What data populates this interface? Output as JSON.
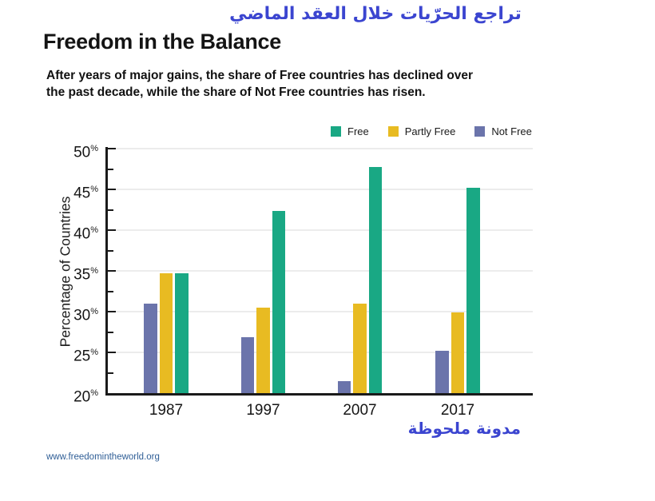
{
  "page": {
    "arabic_header": "تراجع الحرّيات خلال العقد الماضي",
    "title": "Freedom in the Balance",
    "subtitle_line1": "After years of major gains, the share of Free countries has declined over",
    "subtitle_line2": "the past decade, while the share of Not Free countries has risen.",
    "arabic_note": "مدونة ملحوظة",
    "website": "www.freedomintheworld.org"
  },
  "colors": {
    "free_green": "#19a884",
    "partly_free_yellow": "#e8bb22",
    "not_free_purple": "#6b74ab",
    "arabic_blue": "#3b45d0",
    "link_blue": "#2f5e96",
    "grid": "#ececec",
    "axis": "#1a1a1a"
  },
  "chart_data": {
    "type": "bar",
    "title": "Freedom in the Balance",
    "xlabel": "",
    "ylabel": "Percentage of Countries",
    "ylim": [
      20,
      50
    ],
    "yticks": [
      20,
      25,
      30,
      35,
      40,
      45,
      50
    ],
    "ytick_suffix": "%",
    "minor_tick_step": 2.5,
    "grid": "horizontal",
    "legend_position": "top",
    "categories": [
      "1987",
      "1997",
      "2007",
      "2017"
    ],
    "series": [
      {
        "name": "Not Free",
        "color": "#6b74ab",
        "values": [
          31.0,
          26.9,
          21.5,
          25.2
        ]
      },
      {
        "name": "Partly Free",
        "color": "#e8bb22",
        "values": [
          34.7,
          30.5,
          31.0,
          29.9
        ]
      },
      {
        "name": "Free",
        "color": "#19a884",
        "values": [
          34.7,
          42.4,
          47.7,
          45.2
        ]
      }
    ],
    "legend": [
      {
        "label": "Free",
        "color": "#19a884"
      },
      {
        "label": "Partly Free",
        "color": "#e8bb22"
      },
      {
        "label": "Not Free",
        "color": "#6b74ab"
      }
    ]
  }
}
